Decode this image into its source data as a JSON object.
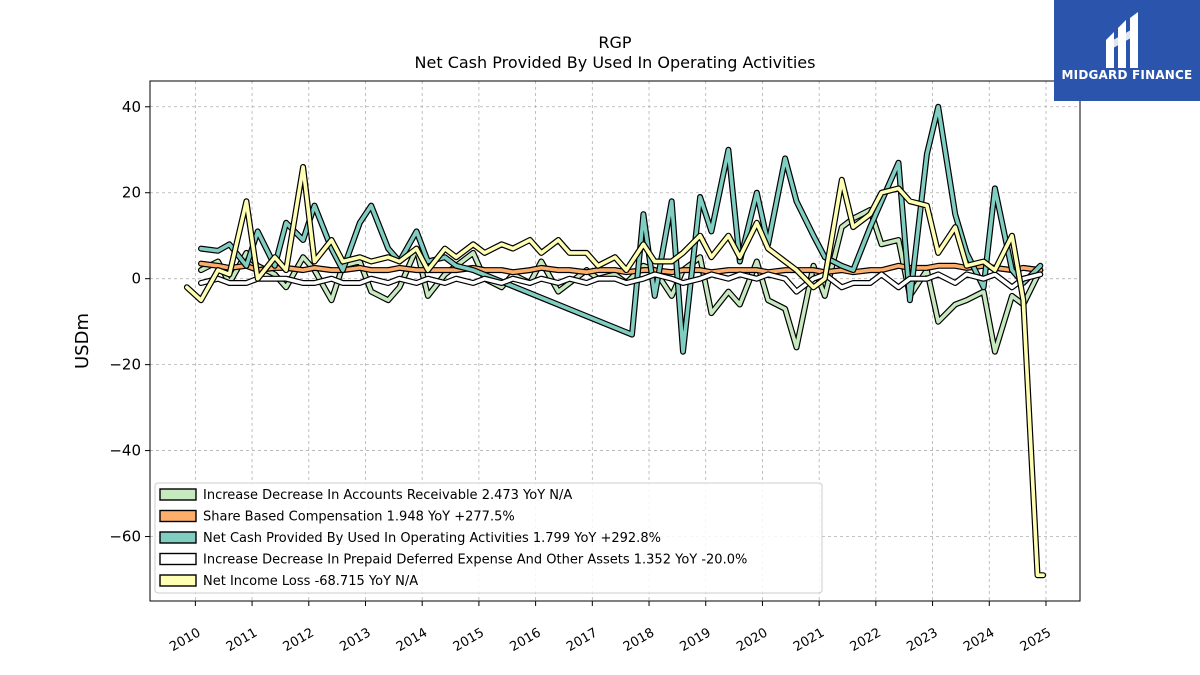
{
  "chart_data": {
    "type": "line",
    "title": "RGP",
    "subtitle": "Net Cash Provided By Used In Operating Activities",
    "ylabel": "USDm",
    "xlabel": "",
    "xlim": [
      2009.2,
      2025.6
    ],
    "ylim": [
      -75,
      46
    ],
    "xticks": [
      2010,
      2011,
      2012,
      2013,
      2014,
      2015,
      2016,
      2017,
      2018,
      2019,
      2020,
      2021,
      2022,
      2023,
      2024,
      2025
    ],
    "yticks": [
      40,
      20,
      0,
      -20,
      -40,
      -60
    ],
    "grid": true,
    "legend_position": "lower-left",
    "series": [
      {
        "name": "Increase Decrease In Accounts Receivable",
        "legend": "Increase Decrease In Accounts Receivable  2.473 YoY N/A",
        "color": "#c7e9c0",
        "x": [
          2010.1,
          2010.4,
          2010.6,
          2010.9,
          2011.1,
          2011.4,
          2011.6,
          2011.9,
          2012.1,
          2012.4,
          2012.6,
          2012.9,
          2013.1,
          2013.4,
          2013.6,
          2013.9,
          2014.1,
          2014.4,
          2014.6,
          2014.9,
          2015.1,
          2015.4,
          2015.6,
          2015.9,
          2016.1,
          2016.4,
          2016.6,
          2016.9,
          2017.1,
          2017.4,
          2017.6,
          2017.9,
          2018.1,
          2018.4,
          2018.6,
          2018.9,
          2019.1,
          2019.4,
          2019.6,
          2019.9,
          2020.1,
          2020.4,
          2020.6,
          2020.9,
          2021.1,
          2021.4,
          2021.6,
          2021.9,
          2022.1,
          2022.4,
          2022.6,
          2022.9,
          2023.1,
          2023.4,
          2023.6,
          2023.9,
          2024.1,
          2024.4,
          2024.6,
          2024.9
        ],
        "values": [
          2,
          4,
          -1,
          6,
          3,
          1,
          -2,
          5,
          2,
          -5,
          3,
          4,
          -3,
          -5,
          -2,
          7,
          -4,
          1,
          3,
          6,
          0,
          -2,
          1,
          -1,
          4,
          -3,
          -1,
          2,
          0,
          1,
          -1,
          3,
          2,
          -4,
          2,
          5,
          -8,
          -3,
          -6,
          4,
          -5,
          -7,
          -16,
          3,
          -4,
          12,
          14,
          16,
          8,
          9,
          -4,
          2,
          -10,
          -6,
          -5,
          -3,
          -17,
          -4,
          -6,
          2
        ]
      },
      {
        "name": "Share Based Compensation",
        "legend": "Share Based Compensation  1.948 YoY +277.5%",
        "color": "#fdae6b",
        "x": [
          2010.1,
          2010.4,
          2010.6,
          2010.9,
          2011.1,
          2011.4,
          2011.6,
          2011.9,
          2012.1,
          2012.4,
          2012.6,
          2012.9,
          2013.1,
          2013.4,
          2013.6,
          2013.9,
          2014.1,
          2014.4,
          2014.6,
          2014.9,
          2015.1,
          2015.4,
          2015.6,
          2015.9,
          2016.1,
          2016.4,
          2016.6,
          2016.9,
          2017.1,
          2017.4,
          2017.6,
          2017.9,
          2018.1,
          2018.4,
          2018.6,
          2018.9,
          2019.1,
          2019.4,
          2019.6,
          2019.9,
          2020.1,
          2020.4,
          2020.6,
          2020.9,
          2021.1,
          2021.4,
          2021.6,
          2021.9,
          2022.1,
          2022.4,
          2022.6,
          2022.9,
          2023.1,
          2023.4,
          2023.6,
          2023.9,
          2024.1,
          2024.4,
          2024.6,
          2024.9
        ],
        "values": [
          3.5,
          3,
          2.5,
          3,
          2,
          2.5,
          2.5,
          2,
          2.5,
          2,
          2,
          2.5,
          2,
          2,
          2.5,
          2,
          2,
          2,
          2,
          2.5,
          2,
          2,
          1.5,
          2,
          2.5,
          2,
          2,
          1.5,
          2,
          2,
          1.5,
          2,
          2,
          1.5,
          2,
          2,
          1.5,
          2,
          2,
          2,
          1.5,
          2,
          2,
          2,
          1.5,
          2,
          1.5,
          2,
          2,
          3,
          2.5,
          2.5,
          3,
          3,
          2.5,
          3,
          2.5,
          2,
          2.5,
          2
        ]
      },
      {
        "name": "Net Cash Provided By Used In Operating Activities",
        "legend": "Net Cash Provided By Used In Operating Activities  1.799 YoY +292.8%",
        "color": "#80cdc1",
        "x": [
          2010.1,
          2010.4,
          2010.6,
          2010.9,
          2011.1,
          2011.4,
          2011.6,
          2011.9,
          2012.1,
          2012.4,
          2012.6,
          2012.9,
          2013.1,
          2013.4,
          2013.6,
          2013.9,
          2014.1,
          2014.4,
          2014.6,
          2014.9,
          2017.7,
          2017.9,
          2018.1,
          2018.4,
          2018.6,
          2018.9,
          2019.1,
          2019.4,
          2019.6,
          2019.9,
          2020.1,
          2020.4,
          2020.6,
          2020.9,
          2021.1,
          2021.4,
          2021.6,
          2021.9,
          2022.1,
          2022.4,
          2022.6,
          2022.9,
          2023.1,
          2023.4,
          2023.6,
          2023.9,
          2024.1,
          2024.4,
          2024.6,
          2024.9
        ],
        "values": [
          7,
          6.5,
          8,
          3,
          11,
          3,
          13,
          9,
          17,
          7,
          2,
          13,
          17,
          7,
          4,
          11,
          4,
          5,
          3,
          2,
          -13,
          15,
          -4,
          18,
          -17,
          19,
          11,
          30,
          4,
          20,
          8,
          28,
          18,
          10,
          5,
          3,
          2,
          12,
          18,
          27,
          -5,
          29,
          40,
          15,
          6,
          -2,
          21,
          2,
          -1,
          3
        ]
      },
      {
        "name": "Increase Decrease In Prepaid Deferred Expense And Other Assets",
        "legend": "Increase Decrease In Prepaid Deferred Expense And Other Assets  1.352 YoY -20.0%",
        "color": "#ffffff",
        "x": [
          2010.1,
          2010.4,
          2010.6,
          2010.9,
          2011.1,
          2011.4,
          2011.6,
          2011.9,
          2012.1,
          2012.4,
          2012.6,
          2012.9,
          2013.1,
          2013.4,
          2013.6,
          2013.9,
          2014.1,
          2014.4,
          2014.6,
          2014.9,
          2015.1,
          2015.4,
          2015.6,
          2015.9,
          2016.1,
          2016.4,
          2016.6,
          2016.9,
          2017.1,
          2017.4,
          2017.6,
          2017.9,
          2018.1,
          2018.4,
          2018.6,
          2018.9,
          2019.1,
          2019.4,
          2019.6,
          2019.9,
          2020.1,
          2020.4,
          2020.6,
          2020.9,
          2021.1,
          2021.4,
          2021.6,
          2021.9,
          2022.1,
          2022.4,
          2022.6,
          2022.9,
          2023.1,
          2023.4,
          2023.6,
          2023.9,
          2024.1,
          2024.4,
          2024.6,
          2024.9
        ],
        "values": [
          -1,
          0,
          -1,
          -1,
          0,
          0,
          0,
          -1,
          -1,
          0,
          -1,
          -1,
          0,
          -1,
          0,
          -1,
          0,
          -1,
          0,
          -1,
          0,
          -1,
          0,
          -1,
          0,
          -1,
          0,
          -1,
          0,
          0,
          -1,
          0,
          1,
          0,
          -1,
          0,
          1,
          0,
          1,
          0,
          1,
          0,
          -3,
          0,
          1,
          -2,
          -1,
          -1,
          1,
          -2,
          0,
          0,
          1,
          -1,
          1,
          0,
          1,
          -2,
          0,
          1
        ]
      },
      {
        "name": "Net Income Loss",
        "legend": "Net Income Loss  -68.715 YoY N/A",
        "color": "#ffffb3",
        "x": [
          2009.85,
          2010.1,
          2010.4,
          2010.6,
          2010.9,
          2011.1,
          2011.4,
          2011.6,
          2011.9,
          2012.1,
          2012.4,
          2012.6,
          2012.9,
          2013.1,
          2013.4,
          2013.6,
          2013.9,
          2014.1,
          2014.4,
          2014.6,
          2014.9,
          2015.1,
          2015.4,
          2015.6,
          2015.9,
          2016.1,
          2016.4,
          2016.6,
          2016.9,
          2017.1,
          2017.4,
          2017.6,
          2017.9,
          2018.1,
          2018.4,
          2018.6,
          2018.9,
          2019.1,
          2019.4,
          2019.6,
          2019.9,
          2020.1,
          2020.4,
          2020.6,
          2020.9,
          2021.1,
          2021.4,
          2021.6,
          2021.9,
          2022.1,
          2022.4,
          2022.6,
          2022.9,
          2023.1,
          2023.4,
          2023.6,
          2023.9,
          2024.1,
          2024.4,
          2024.6,
          2024.85,
          2024.95
        ],
        "values": [
          -2,
          -5,
          2,
          1,
          18,
          0,
          5,
          2,
          26,
          4,
          9,
          4,
          5,
          4,
          5,
          4,
          7,
          2,
          7,
          5,
          8,
          6,
          8,
          7,
          9,
          6,
          9,
          6,
          6,
          3,
          5,
          2,
          8,
          4,
          4,
          6,
          10,
          5,
          10,
          5,
          13,
          7,
          4,
          2,
          -2,
          0,
          23,
          12,
          15,
          20,
          21,
          18,
          17,
          6,
          12,
          3,
          4,
          2,
          10,
          -5,
          -69,
          -69
        ]
      }
    ]
  },
  "brand": {
    "name": "MIDGARD FINANCE",
    "color": "#2b55ad"
  }
}
